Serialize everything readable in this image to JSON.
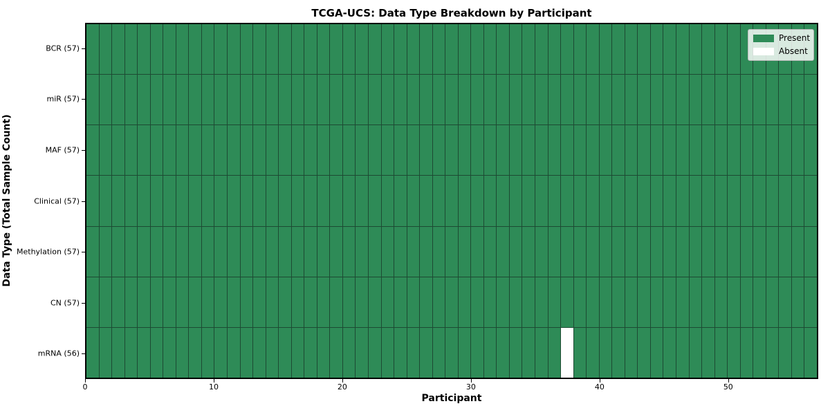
{
  "chart_data": {
    "type": "heatmap",
    "title": "TCGA-UCS: Data Type Breakdown by Participant",
    "xlabel": "Participant",
    "ylabel": "Data Type (Total Sample Count)",
    "n_participants": 57,
    "x_ticks": [
      0,
      10,
      20,
      30,
      40,
      50
    ],
    "xlim": [
      0,
      57
    ],
    "grid": "cell-edges",
    "legend_position": "upper right",
    "rows": [
      {
        "label": "BCR (57)",
        "data_type": "BCR",
        "sample_count": 57,
        "absent_participants": []
      },
      {
        "label": "miR (57)",
        "data_type": "miR",
        "sample_count": 57,
        "absent_participants": []
      },
      {
        "label": "MAF (57)",
        "data_type": "MAF",
        "sample_count": 57,
        "absent_participants": []
      },
      {
        "label": "Clinical (57)",
        "data_type": "Clinical",
        "sample_count": 57,
        "absent_participants": []
      },
      {
        "label": "Methylation (57)",
        "data_type": "Methylation",
        "sample_count": 57,
        "absent_participants": []
      },
      {
        "label": "CN (57)",
        "data_type": "CN",
        "sample_count": 57,
        "absent_participants": []
      },
      {
        "label": "mRNA (56)",
        "data_type": "mRNA",
        "sample_count": 56,
        "absent_participants": [
          37
        ]
      }
    ],
    "legend": [
      {
        "label": "Present",
        "color": "#2e8b57"
      },
      {
        "label": "Absent",
        "color": "#ffffff"
      }
    ],
    "colors": {
      "present": "#2e8b57",
      "absent": "#ffffff",
      "grid_line": "#1d4a33",
      "plot_border": "#000000"
    }
  }
}
